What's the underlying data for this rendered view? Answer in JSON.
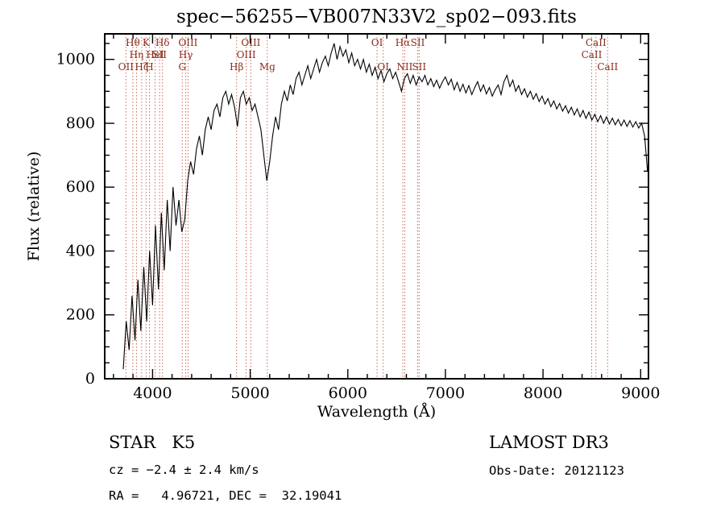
{
  "chart_data": {
    "type": "line",
    "title": "spec−56255−VB007N33V2_sp02−093.fits",
    "xlabel": "Wavelength (Å)",
    "ylabel": "Flux (relative)",
    "xlim": [
      3510,
      9080
    ],
    "ylim": [
      0,
      1080
    ],
    "xticks": [
      4000,
      5000,
      6000,
      7000,
      8000,
      9000
    ],
    "yticks": [
      0,
      200,
      400,
      600,
      800,
      1000
    ],
    "x_minor_step": 200,
    "y_minor_step": 50,
    "grid": false,
    "legend": "none",
    "line_color": "#000000",
    "marker_line_color": "#cc6a55",
    "marker_label_color": "#8b2a1a",
    "spectral_lines": [
      {
        "label": "OII",
        "wavelength": 3727,
        "row": 2
      },
      {
        "label": "Hθ",
        "wavelength": 3798,
        "row": 0
      },
      {
        "label": "Hη",
        "wavelength": 3835,
        "row": 1
      },
      {
        "label": "Hζ",
        "wavelength": 3889,
        "row": 2
      },
      {
        "label": "K",
        "wavelength": 3933,
        "row": 0
      },
      {
        "label": "H",
        "wavelength": 3968,
        "row": 2
      },
      {
        "label": "HeI",
        "wavelength": 4026,
        "row": 1
      },
      {
        "label": "SII",
        "wavelength": 4072,
        "row": 1
      },
      {
        "label": "Hδ",
        "wavelength": 4102,
        "row": 0
      },
      {
        "label": "G",
        "wavelength": 4305,
        "row": 2
      },
      {
        "label": "Hγ",
        "wavelength": 4340,
        "row": 1
      },
      {
        "label": "OIII",
        "wavelength": 4363,
        "row": 0
      },
      {
        "label": "Hβ",
        "wavelength": 4861,
        "row": 2
      },
      {
        "label": "OIII",
        "wavelength": 4959,
        "row": 1
      },
      {
        "label": "OIII",
        "wavelength": 5007,
        "row": 0
      },
      {
        "label": "Mg",
        "wavelength": 5175,
        "row": 2
      },
      {
        "label": "OI",
        "wavelength": 6300,
        "row": 0
      },
      {
        "label": "OI",
        "wavelength": 6363,
        "row": 2
      },
      {
        "label": "Hα",
        "wavelength": 6563,
        "row": 0
      },
      {
        "label": "NII",
        "wavelength": 6583,
        "row": 2
      },
      {
        "label": "SII",
        "wavelength": 6716,
        "row": 0
      },
      {
        "label": "SII",
        "wavelength": 6731,
        "row": 2
      },
      {
        "label": "CaII",
        "wavelength": 8498,
        "row": 1
      },
      {
        "label": "CaII",
        "wavelength": 8542,
        "row": 0
      },
      {
        "label": "CaII",
        "wavelength": 8662,
        "row": 2
      }
    ],
    "series": [
      {
        "name": "flux",
        "x_start": 3700,
        "x_step": 30,
        "values": [
          30,
          180,
          90,
          260,
          120,
          310,
          150,
          350,
          180,
          400,
          230,
          480,
          280,
          520,
          340,
          560,
          400,
          600,
          480,
          560,
          460,
          500,
          620,
          680,
          640,
          720,
          760,
          700,
          780,
          820,
          780,
          840,
          860,
          820,
          880,
          900,
          860,
          890,
          850,
          790,
          880,
          900,
          860,
          880,
          840,
          860,
          820,
          780,
          700,
          620,
          680,
          760,
          820,
          780,
          860,
          900,
          870,
          920,
          890,
          940,
          960,
          920,
          950,
          980,
          940,
          970,
          1000,
          960,
          990,
          1010,
          980,
          1020,
          1050,
          1000,
          1040,
          1010,
          1030,
          990,
          1020,
          980,
          1000,
          970,
          1000,
          960,
          985,
          950,
          975,
          940,
          965,
          930,
          955,
          970,
          940,
          960,
          930,
          900,
          940,
          955,
          925,
          950,
          920,
          945,
          930,
          950,
          920,
          940,
          915,
          935,
          910,
          930,
          945,
          920,
          938,
          905,
          928,
          900,
          922,
          895,
          918,
          890,
          912,
          930,
          900,
          920,
          892,
          912,
          885,
          905,
          920,
          890,
          930,
          950,
          915,
          935,
          900,
          918,
          890,
          908,
          882,
          900,
          875,
          893,
          868,
          885,
          860,
          877,
          852,
          870,
          845,
          862,
          838,
          855,
          832,
          850,
          826,
          845,
          820,
          840,
          815,
          835,
          810,
          828,
          805,
          824,
          800,
          820,
          798,
          816,
          795,
          812,
          792,
          810,
          790,
          808,
          788,
          805,
          785,
          800,
          760,
          650
        ]
      }
    ]
  },
  "annotations": {
    "class_label": "STAR   K5",
    "survey": "LAMOST DR3",
    "cz": "cz = −2.4 ± 2.4 km/s",
    "obs_date": "Obs-Date: 20121123",
    "radec": "RA =   4.96721, DEC =  32.19041"
  }
}
